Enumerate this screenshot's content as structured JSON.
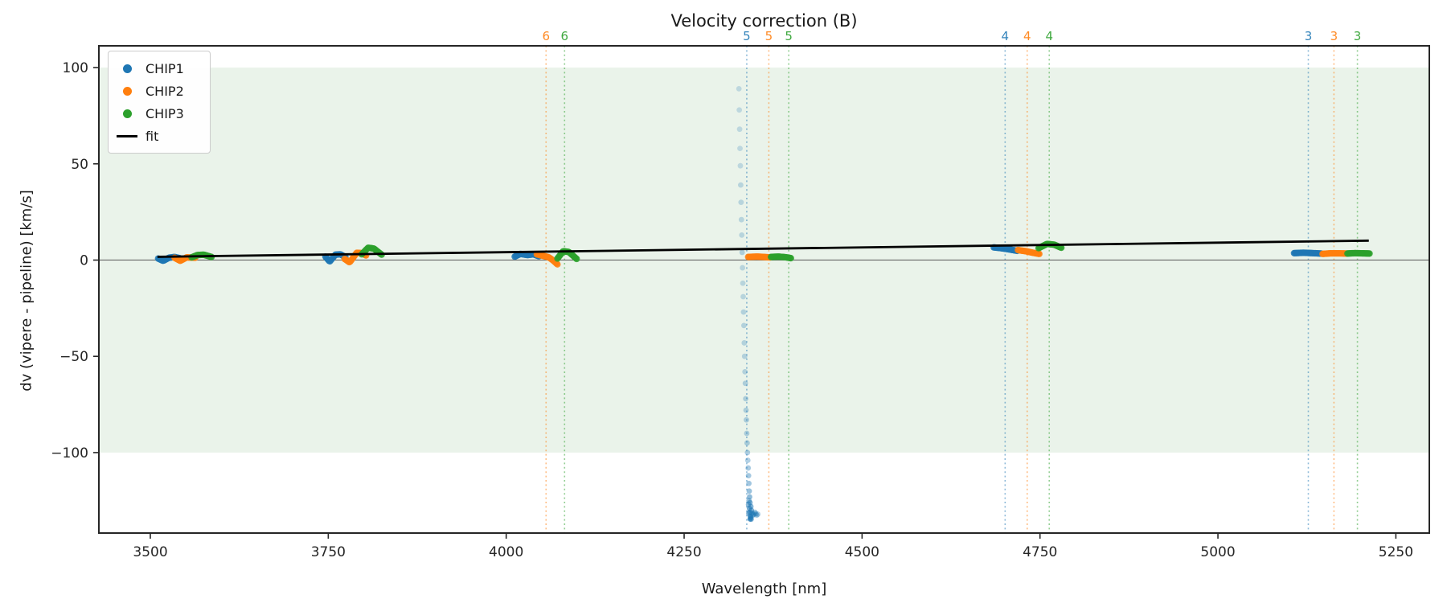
{
  "title": "Velocity correction (B)",
  "axes": {
    "xlabel": "Wavelength [nm]",
    "ylabel": "dv (vipere - pipeline) [km/s]"
  },
  "legend": {
    "items": [
      {
        "label": "CHIP1",
        "color": "#1f77b4",
        "marker": "dot"
      },
      {
        "label": "CHIP2",
        "color": "#ff7f0e",
        "marker": "dot"
      },
      {
        "label": "CHIP3",
        "color": "#2ca02c",
        "marker": "dot"
      },
      {
        "label": "fit",
        "color": "#000000",
        "marker": "line"
      }
    ]
  },
  "chart_data": {
    "type": "scatter",
    "title": "Velocity correction (B)",
    "xlabel": "Wavelength [nm]",
    "ylabel": "dv (vipere - pipeline) [km/s]",
    "xlim": [
      3427.7,
      5297.0
    ],
    "ylim": [
      -141.8,
      111.3
    ],
    "xticks": [
      3500,
      3750,
      4000,
      4250,
      4500,
      4750,
      5000,
      5250
    ],
    "xtick_labels": [
      "3500",
      "3750",
      "4000",
      "4250",
      "4500",
      "4750",
      "5000",
      "5250"
    ],
    "yticks": [
      100,
      50,
      0,
      -50,
      -100
    ],
    "ytick_labels": [
      "100",
      "50",
      "0",
      "−50",
      "−100"
    ],
    "band": {
      "ymin": -100,
      "ymax": 100,
      "color": "#eaf3ea"
    },
    "zero_line": {
      "y": 0,
      "color": "#666666"
    },
    "fit": {
      "name": "fit",
      "color": "#000000",
      "x": [
        3510,
        5212
      ],
      "y": [
        1.7,
        10.1
      ]
    },
    "series": [
      {
        "name": "CHIP1",
        "color": "#1f77b4",
        "chunks": [
          [
            [
              3511,
              0.8
            ],
            [
              3518,
              -0.4
            ],
            [
              3526,
              1.2
            ],
            [
              3534,
              1.6
            ],
            [
              3541,
              1.0
            ]
          ],
          [
            [
              3746,
              1.8
            ],
            [
              3752,
              -0.8
            ],
            [
              3760,
              2.8
            ],
            [
              3767,
              3.0
            ],
            [
              3774,
              1.6
            ]
          ],
          [
            [
              4012,
              1.8
            ],
            [
              4020,
              3.2
            ],
            [
              4030,
              2.6
            ],
            [
              4038,
              3.0
            ],
            [
              4046,
              2.0
            ]
          ],
          [
            [
              4685,
              6.6
            ],
            [
              4695,
              6.2
            ],
            [
              4706,
              5.6
            ],
            [
              4718,
              4.8
            ]
          ],
          [
            [
              5107,
              3.6
            ],
            [
              5120,
              3.8
            ],
            [
              5133,
              3.6
            ],
            [
              5145,
              3.4
            ]
          ]
        ]
      },
      {
        "name": "CHIP2",
        "color": "#ff7f0e",
        "chunks": [
          [
            [
              3534,
              1.2
            ],
            [
              3542,
              -0.4
            ],
            [
              3551,
              1.4
            ],
            [
              3563,
              1.2
            ]
          ],
          [
            [
              3773,
              0.6
            ],
            [
              3780,
              -1.2
            ],
            [
              3790,
              3.8
            ],
            [
              3797,
              3.6
            ],
            [
              3803,
              2.4
            ]
          ],
          [
            [
              4043,
              3.0
            ],
            [
              4052,
              2.2
            ],
            [
              4060,
              1.4
            ],
            [
              4066,
              -0.2
            ],
            [
              4072,
              -2.2
            ]
          ],
          [
            [
              4340,
              1.6
            ],
            [
              4352,
              1.8
            ],
            [
              4362,
              1.6
            ],
            [
              4371,
              1.4
            ]
          ],
          [
            [
              4719,
              5.2
            ],
            [
              4730,
              4.6
            ],
            [
              4740,
              3.8
            ],
            [
              4749,
              3.2
            ]
          ],
          [
            [
              5147,
              3.2
            ],
            [
              5158,
              3.5
            ],
            [
              5170,
              3.5
            ],
            [
              5181,
              3.4
            ]
          ]
        ]
      },
      {
        "name": "CHIP3",
        "color": "#2ca02c",
        "chunks": [
          [
            [
              3558,
              1.4
            ],
            [
              3566,
              2.6
            ],
            [
              3575,
              2.8
            ],
            [
              3586,
              1.6
            ]
          ],
          [
            [
              3797,
              3.0
            ],
            [
              3806,
              6.4
            ],
            [
              3814,
              6.0
            ],
            [
              3825,
              2.8
            ]
          ],
          [
            [
              4072,
              0.8
            ],
            [
              4080,
              4.6
            ],
            [
              4088,
              4.2
            ],
            [
              4099,
              0.6
            ]
          ],
          [
            [
              4372,
              1.6
            ],
            [
              4382,
              1.8
            ],
            [
              4392,
              1.5
            ],
            [
              4400,
              1.0
            ]
          ],
          [
            [
              4748,
              6.2
            ],
            [
              4760,
              8.4
            ],
            [
              4770,
              8.0
            ],
            [
              4780,
              6.4
            ]
          ],
          [
            [
              5182,
              3.4
            ],
            [
              5192,
              3.6
            ],
            [
              5203,
              3.5
            ],
            [
              5213,
              3.4
            ]
          ]
        ]
      }
    ],
    "outlier_trail": {
      "chip": "CHIP1",
      "color": "#1f77b4",
      "points": [
        [
          4327.0,
          89,
          0.22
        ],
        [
          4327.5,
          78,
          0.22
        ],
        [
          4328.0,
          68,
          0.22
        ],
        [
          4328.5,
          58,
          0.22
        ],
        [
          4329.0,
          49,
          0.22
        ],
        [
          4329.5,
          39,
          0.25
        ],
        [
          4330.0,
          30,
          0.25
        ],
        [
          4330.5,
          21,
          0.25
        ],
        [
          4331.0,
          13,
          0.25
        ],
        [
          4331.5,
          4,
          0.3
        ],
        [
          4332.0,
          -4,
          0.25
        ],
        [
          4332.5,
          -12,
          0.25
        ],
        [
          4333.0,
          -19,
          0.25
        ],
        [
          4333.5,
          -27,
          0.27
        ],
        [
          4334.0,
          -34,
          0.27
        ],
        [
          4334.5,
          -43,
          0.27
        ],
        [
          4335.0,
          -50,
          0.28
        ],
        [
          4335.5,
          -58,
          0.28
        ],
        [
          4336.0,
          -64,
          0.3
        ],
        [
          4336.5,
          -72,
          0.3
        ],
        [
          4337.0,
          -78,
          0.3
        ],
        [
          4337.5,
          -83,
          0.32
        ],
        [
          4338.0,
          -90,
          0.32
        ],
        [
          4338.5,
          -95,
          0.34
        ],
        [
          4339.0,
          -100,
          0.35
        ],
        [
          4339.5,
          -104,
          0.35
        ],
        [
          4340.0,
          -108,
          0.38
        ],
        [
          4340.5,
          -112,
          0.4
        ],
        [
          4341.0,
          -116,
          0.42
        ],
        [
          4341.5,
          -120,
          0.45
        ],
        [
          4342.0,
          -123,
          0.5
        ],
        [
          4342.5,
          -126,
          0.55
        ],
        [
          4341.8,
          -129,
          0.6
        ],
        [
          4342.3,
          -131,
          0.62
        ],
        [
          4343.0,
          -133,
          0.7
        ],
        [
          4340.5,
          -127,
          0.5
        ],
        [
          4341.2,
          -125,
          0.45
        ],
        [
          4343.8,
          -128,
          0.55
        ],
        [
          4344.6,
          -130,
          0.55
        ],
        [
          4345.5,
          -131.5,
          0.55
        ],
        [
          4346.6,
          -132.5,
          0.5
        ],
        [
          4348.0,
          -132,
          0.45
        ],
        [
          4349.5,
          -131,
          0.4
        ],
        [
          4350.8,
          -131.8,
          0.4
        ],
        [
          4352.0,
          -132.5,
          0.38
        ],
        [
          4353.5,
          -132,
          0.35
        ],
        [
          4342.8,
          -134.5,
          0.7
        ],
        [
          4343.6,
          -133.8,
          0.62
        ],
        [
          4344.2,
          -134.6,
          0.55
        ],
        [
          4340.8,
          -131.5,
          0.5
        ]
      ]
    },
    "order_lines": [
      {
        "label": "6",
        "chip": "CHIP2",
        "wavelength": 4056,
        "color": "#ff7f0e"
      },
      {
        "label": "6",
        "chip": "CHIP3",
        "wavelength": 4082,
        "color": "#2ca02c"
      },
      {
        "label": "5",
        "chip": "CHIP1",
        "wavelength": 4338,
        "color": "#1f77b4"
      },
      {
        "label": "5",
        "chip": "CHIP2",
        "wavelength": 4369,
        "color": "#ff7f0e"
      },
      {
        "label": "5",
        "chip": "CHIP3",
        "wavelength": 4397,
        "color": "#2ca02c"
      },
      {
        "label": "4",
        "chip": "CHIP1",
        "wavelength": 4701,
        "color": "#1f77b4"
      },
      {
        "label": "4",
        "chip": "CHIP2",
        "wavelength": 4732,
        "color": "#ff7f0e"
      },
      {
        "label": "4",
        "chip": "CHIP3",
        "wavelength": 4763,
        "color": "#2ca02c"
      },
      {
        "label": "3",
        "chip": "CHIP1",
        "wavelength": 5127,
        "color": "#1f77b4"
      },
      {
        "label": "3",
        "chip": "CHIP2",
        "wavelength": 5163,
        "color": "#ff7f0e"
      },
      {
        "label": "3",
        "chip": "CHIP3",
        "wavelength": 5196,
        "color": "#2ca02c"
      }
    ],
    "legend_position": "upper left",
    "grid": false
  }
}
